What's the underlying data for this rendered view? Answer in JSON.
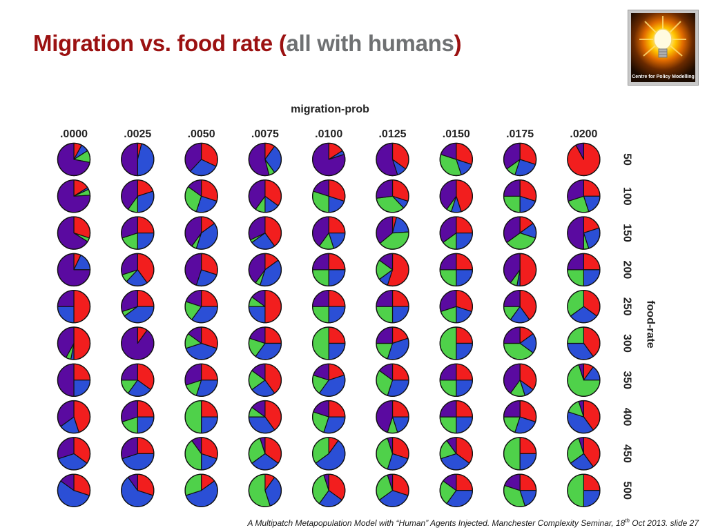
{
  "slide": {
    "title_main": "Migration vs. food rate (",
    "title_sub": "all with humans",
    "title_close": ")",
    "logo_caption": "Centre for Policy Modelling",
    "footer_before": "A Multipatch Metapopulation Model with “Human” Agents Injected. Manchester Complexity Seminar, 18",
    "footer_sup": "th",
    "footer_after": " Oct 2013.  slide  27"
  },
  "colors": {
    "title": "#9b1111",
    "subtitle": "#6f7173",
    "purple": "#5a0aa0",
    "blue": "#2b4fd6",
    "green": "#4fd14a",
    "red": "#f21e1e"
  },
  "chart_data": {
    "type": "pie",
    "title": "migration-prob",
    "column_label": "migration-prob",
    "row_label": "food-rate",
    "columns": [
      ".0000",
      ".0025",
      ".0050",
      ".0075",
      ".0100",
      ".0125",
      ".0150",
      ".0175",
      ".0200"
    ],
    "rows": [
      "50",
      "100",
      "150",
      "200",
      "250",
      "300",
      "350",
      "400",
      "450",
      "500"
    ],
    "slice_order": [
      "red",
      "blue",
      "green",
      "purple"
    ],
    "cells": [
      [
        [
          0.08,
          0.08,
          0.12,
          0.72
        ],
        [
          0.04,
          0.46,
          0,
          0.5
        ],
        [
          0.32,
          0.3,
          0,
          0.38
        ],
        [
          0.1,
          0.3,
          0.06,
          0.54
        ],
        [
          0.16,
          0.04,
          0,
          0.8
        ],
        [
          0.35,
          0.1,
          0,
          0.55
        ],
        [
          0.3,
          0.15,
          0.35,
          0.2
        ],
        [
          0.3,
          0.25,
          0.1,
          0.35
        ],
        [
          0.92,
          0,
          0,
          0.08
        ]
      ],
      [
        [
          0.16,
          0.02,
          0.06,
          0.76
        ],
        [
          0.2,
          0.3,
          0.1,
          0.4
        ],
        [
          0.3,
          0.25,
          0.3,
          0.15
        ],
        [
          0.35,
          0.15,
          0.1,
          0.4
        ],
        [
          0.3,
          0.2,
          0.3,
          0.2
        ],
        [
          0.3,
          0.08,
          0.35,
          0.27
        ],
        [
          0.45,
          0.1,
          0.05,
          0.4
        ],
        [
          0.3,
          0.2,
          0.25,
          0.25
        ],
        [
          0.25,
          0.2,
          0.25,
          0.3
        ]
      ],
      [
        [
          0.3,
          0,
          0.04,
          0.66
        ],
        [
          0.25,
          0.25,
          0.2,
          0.3
        ],
        [
          0.15,
          0.4,
          0.05,
          0.4
        ],
        [
          0.4,
          0.25,
          0.03,
          0.32
        ],
        [
          0.25,
          0.2,
          0.15,
          0.4
        ],
        [
          0.04,
          0.2,
          0.4,
          0.36
        ],
        [
          0.25,
          0.25,
          0.15,
          0.35
        ],
        [
          0.15,
          0.15,
          0.35,
          0.35
        ],
        [
          0.2,
          0.25,
          0.05,
          0.5
        ]
      ],
      [
        [
          0.07,
          0.18,
          0,
          0.75
        ],
        [
          0.4,
          0.22,
          0.08,
          0.3
        ],
        [
          0.3,
          0.25,
          0,
          0.45
        ],
        [
          0.15,
          0.4,
          0.05,
          0.4
        ],
        [
          0.25,
          0.25,
          0.25,
          0.25
        ],
        [
          0.55,
          0.1,
          0.2,
          0.15
        ],
        [
          0.25,
          0.25,
          0.25,
          0.25
        ],
        [
          0.5,
          0.03,
          0.07,
          0.4
        ],
        [
          0.25,
          0.25,
          0.25,
          0.25
        ]
      ],
      [
        [
          0.5,
          0.25,
          0,
          0.25
        ],
        [
          0.25,
          0.4,
          0.05,
          0.3
        ],
        [
          0.25,
          0.35,
          0.2,
          0.2
        ],
        [
          0.5,
          0.25,
          0.1,
          0.15
        ],
        [
          0.25,
          0.25,
          0.25,
          0.25
        ],
        [
          0.25,
          0.25,
          0.25,
          0.25
        ],
        [
          0.3,
          0.2,
          0.2,
          0.3
        ],
        [
          0.4,
          0.2,
          0.15,
          0.25
        ],
        [
          0.35,
          0.3,
          0.35,
          0
        ]
      ],
      [
        [
          0.5,
          0.03,
          0.05,
          0.42
        ],
        [
          0.1,
          0,
          0,
          0.9
        ],
        [
          0.3,
          0.4,
          0.15,
          0.15
        ],
        [
          0.25,
          0.35,
          0.2,
          0.2
        ],
        [
          0.25,
          0.25,
          0.5,
          0
        ],
        [
          0.2,
          0.35,
          0.2,
          0.25
        ],
        [
          0.25,
          0.25,
          0.5,
          0
        ],
        [
          0.15,
          0.2,
          0.4,
          0.25
        ],
        [
          0.4,
          0.35,
          0.25,
          0
        ]
      ],
      [
        [
          0.25,
          0.25,
          0,
          0.5
        ],
        [
          0.35,
          0.25,
          0.15,
          0.25
        ],
        [
          0.25,
          0.3,
          0.15,
          0.3
        ],
        [
          0.4,
          0.25,
          0.2,
          0.15
        ],
        [
          0.2,
          0.4,
          0.2,
          0.2
        ],
        [
          0.25,
          0.3,
          0.3,
          0.15
        ],
        [
          0.25,
          0.25,
          0.25,
          0.25
        ],
        [
          0.35,
          0.1,
          0.15,
          0.4
        ],
        [
          0.1,
          0.15,
          0.7,
          0.05
        ]
      ],
      [
        [
          0.45,
          0.2,
          0,
          0.35
        ],
        [
          0.25,
          0.25,
          0.2,
          0.3
        ],
        [
          0.25,
          0.25,
          0.5,
          0
        ],
        [
          0.4,
          0.35,
          0.1,
          0.15
        ],
        [
          0.25,
          0.3,
          0.25,
          0.2
        ],
        [
          0.25,
          0.2,
          0.1,
          0.45
        ],
        [
          0.25,
          0.25,
          0.25,
          0.25
        ],
        [
          0.3,
          0.25,
          0.2,
          0.25
        ],
        [
          0.4,
          0.4,
          0.15,
          0.05
        ]
      ],
      [
        [
          0.35,
          0.35,
          0,
          0.3
        ],
        [
          0.25,
          0.45,
          0,
          0.3
        ],
        [
          0.3,
          0.2,
          0.4,
          0.1
        ],
        [
          0.35,
          0.3,
          0.3,
          0.05
        ],
        [
          0.1,
          0.55,
          0.35,
          0
        ],
        [
          0.3,
          0.25,
          0.4,
          0.05
        ],
        [
          0.35,
          0.35,
          0.2,
          0.1
        ],
        [
          0.25,
          0.25,
          0.5,
          0
        ],
        [
          0.4,
          0.25,
          0.3,
          0.05
        ]
      ],
      [
        [
          0.3,
          0.55,
          0,
          0.15
        ],
        [
          0.3,
          0.6,
          0,
          0.1
        ],
        [
          0.15,
          0.55,
          0.3,
          0
        ],
        [
          0.1,
          0.35,
          0.55,
          0
        ],
        [
          0.35,
          0.25,
          0.35,
          0.05
        ],
        [
          0.3,
          0.35,
          0.3,
          0.05
        ],
        [
          0.25,
          0.35,
          0.25,
          0.15
        ],
        [
          0.25,
          0.2,
          0.35,
          0.2
        ],
        [
          0.25,
          0.25,
          0.5,
          0
        ]
      ]
    ]
  }
}
